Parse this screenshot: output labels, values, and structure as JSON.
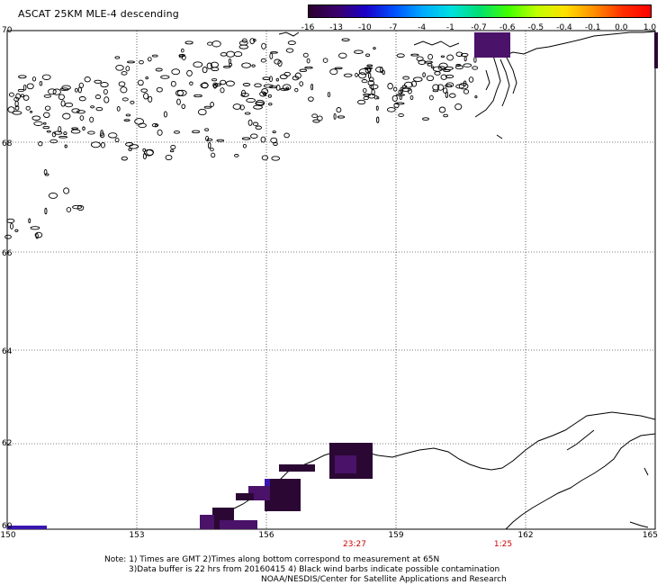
{
  "header": {
    "title": "ASCAT 25KM MLE-4 descending"
  },
  "colorbar": {
    "labels": [
      "-16",
      "-13",
      "-10",
      "-7",
      "-4",
      "-1",
      "-0.7",
      "-0.6",
      "-0.5",
      "-0.4",
      "-0.1",
      "0.0",
      "1.0"
    ],
    "colors": [
      "#2a0030",
      "#3a006a",
      "#1a00c8",
      "#0050ff",
      "#00aaff",
      "#00e0e0",
      "#00e070",
      "#40ff00",
      "#c0ff00",
      "#ffe000",
      "#ff9000",
      "#ff3000",
      "#ff0000"
    ]
  },
  "axes": {
    "lat_labels": [
      "70",
      "68",
      "66",
      "64",
      "62",
      "60"
    ],
    "lon_labels": [
      "150",
      "153",
      "156",
      "159",
      "162",
      "165"
    ]
  },
  "times": [
    {
      "label": "23:27"
    },
    {
      "label": "1:25"
    }
  ],
  "notes": {
    "line1": "Note: 1) Times are GMT 2)Times along bottom correspond to measurement at 65N",
    "line2": "3)Data buffer is 22 hrs from 20160415 4) Black wind barbs indicate possible contamination",
    "line3": "NOAA/NESDIS/Center for Satellite Applications and Research"
  },
  "swath_colors": {
    "dark": "#2a0833",
    "mid": "#4a1268",
    "blue": "#3a16b0"
  }
}
